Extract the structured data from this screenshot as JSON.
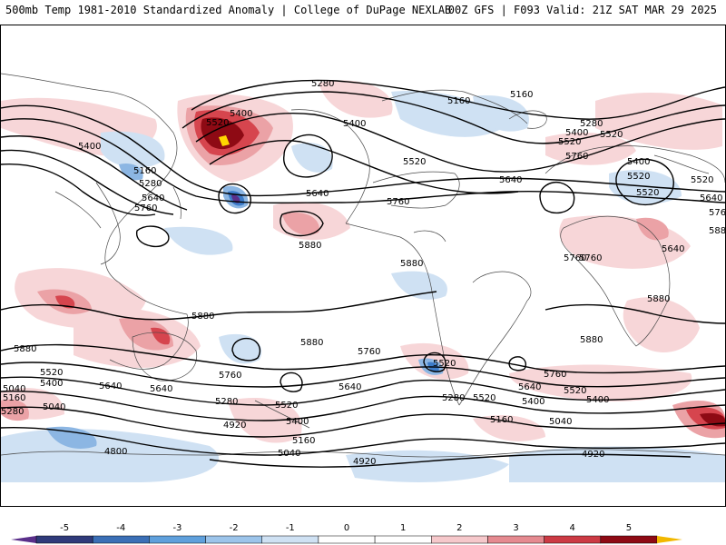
{
  "header": {
    "title_left": "500mb Temp 1981-2010 Standardized Anomaly | College of DuPage NEXLAB",
    "title_right": "00Z GFS | F093 Valid: 21Z SAT MAR 29 2025"
  },
  "map": {
    "contour_labels": [
      "5280",
      "5160",
      "5160",
      "5400",
      "5520",
      "5520",
      "5400",
      "5160",
      "5280",
      "5640",
      "5760",
      "5640",
      "5760",
      "5880",
      "5400",
      "5520",
      "5640",
      "5760",
      "5280",
      "5400",
      "5520",
      "5640",
      "5760",
      "5880",
      "5880",
      "5880",
      "5880",
      "5880",
      "5760",
      "5520",
      "5400",
      "5280",
      "5040",
      "5520",
      "5400",
      "5640",
      "5760",
      "5280",
      "5400",
      "5520",
      "5640",
      "5160",
      "4920",
      "5040",
      "4800",
      "5160",
      "5040",
      "4920",
      "4920",
      "5160",
      "5040",
      "5880",
      "5760",
      "5640",
      "5520",
      "5400",
      "5280",
      "5520",
      "5640",
      "5760",
      "5880",
      "5400",
      "5520",
      "5520",
      "5640",
      "5520",
      "5760"
    ],
    "colors": {
      "warm_light": "#f7d6d8",
      "warm_mid": "#eba2a6",
      "warm_strong": "#d6454e",
      "warm_extreme": "#8e0a14",
      "max_yellow": "#ffd700",
      "cold_light": "#cfe1f3",
      "cold_mid": "#8cb6e3",
      "cold_strong": "#3d7cc9",
      "cold_extreme": "#5a2f8a",
      "contour": "#000000",
      "coast": "#4a4a4a"
    }
  },
  "colorbar": {
    "ticks": [
      "-5",
      "-4",
      "-3",
      "-2",
      "-1",
      "0",
      "1",
      "2",
      "3",
      "4",
      "5"
    ],
    "colors": [
      "#2f3a7a",
      "#3b6fb6",
      "#5fa0dc",
      "#9cc4ea",
      "#cfe1f3",
      "#ffffff",
      "#ffffff",
      "#f6c8cb",
      "#e58a90",
      "#cc3a44",
      "#8e0a14"
    ],
    "low_tip_color": "#5a2f8a",
    "high_tip_color": "#f2b800"
  }
}
